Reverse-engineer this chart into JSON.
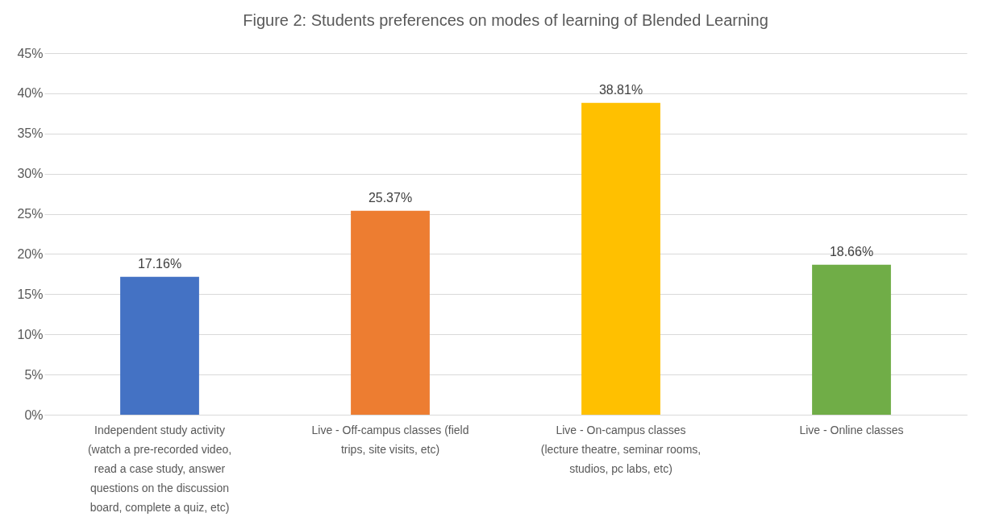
{
  "chart_data": {
    "type": "bar",
    "title": "Figure  2: Students  preferences on modes of learning  of Blended Learning",
    "categories": [
      "Independent study activity (watch a pre-recorded video, read a case study, answer questions on the discussion board, complete a quiz, etc)",
      "Live - Off-campus classes (field trips, site visits, etc)",
      "Live - On-campus classes (lecture theatre, seminar rooms, studios, pc labs, etc)",
      "Live - Online classes"
    ],
    "values": [
      17.16,
      25.37,
      38.81,
      18.66
    ],
    "value_labels": [
      "17.16%",
      "25.37%",
      "38.81%",
      "18.66%"
    ],
    "colors": [
      "#4472c4",
      "#ed7d31",
      "#ffc000",
      "#70ad47"
    ],
    "ylim": [
      0,
      45
    ],
    "yticks": [
      {
        "value": 0,
        "label": "0%"
      },
      {
        "value": 5,
        "label": "5%"
      },
      {
        "value": 10,
        "label": "10%"
      },
      {
        "value": 15,
        "label": "15%"
      },
      {
        "value": 20,
        "label": "20%"
      },
      {
        "value": 25,
        "label": "25%"
      },
      {
        "value": 30,
        "label": "30%"
      },
      {
        "value": 35,
        "label": "35%"
      },
      {
        "value": 40,
        "label": "40%"
      },
      {
        "value": 45,
        "label": "45%"
      }
    ],
    "grid": "y"
  }
}
